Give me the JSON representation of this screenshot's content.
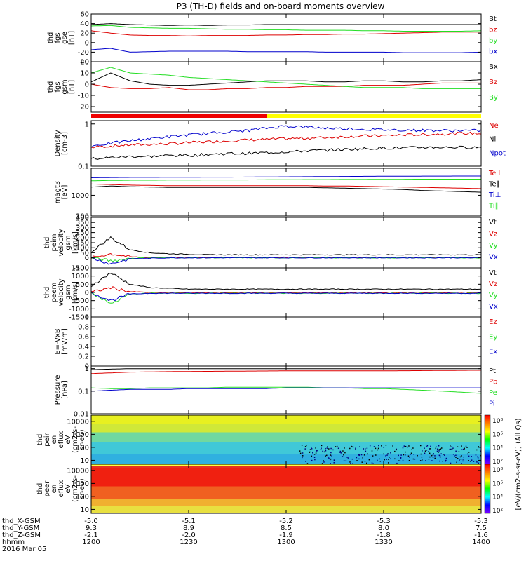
{
  "title": "P3 (TH-D) fields and on-board moments overview",
  "date_label": "2016 Mar 05",
  "orbit": {
    "labels": [
      "thd_X-GSM",
      "thd_Y-GSM",
      "thd_Z-GSM",
      "hhmm"
    ],
    "columns": [
      {
        "x": "-5.0",
        "y": "9.3",
        "z": "-2.1",
        "hhmm": "1200"
      },
      {
        "x": "-5.1",
        "y": "8.9",
        "z": "-2.0",
        "hhmm": "1230"
      },
      {
        "x": "-5.2",
        "y": "8.5",
        "z": "-1.9",
        "hhmm": "1300"
      },
      {
        "x": "-5.3",
        "y": "8.0",
        "z": "-1.8",
        "hhmm": "1330"
      },
      {
        "x": "-5.3",
        "y": "7.5",
        "z": "-1.6",
        "hhmm": "1400"
      }
    ]
  },
  "colors": {
    "black": "#000000",
    "red": "#dd0000",
    "green": "#22dd22",
    "blue": "#0000cc"
  },
  "chart_data": {
    "type": "line",
    "time_range_hhmm": [
      "1200",
      "1400"
    ],
    "mode_bar": {
      "colors": [
        "#ee0000",
        "#ffff00"
      ],
      "switch_fraction": 0.45
    },
    "panels": [
      {
        "id": "fgs_gse",
        "scale": "linear",
        "ylabel": [
          "thd",
          "fgs",
          "gse",
          "[nT]"
        ],
        "ylim": [
          -40,
          60
        ],
        "ticks": [
          -40,
          -20,
          0,
          20,
          40,
          60
        ],
        "series": [
          {
            "name": "Bt",
            "color": "#000000",
            "values": [
              38,
              40,
              38,
              37,
              36,
              37,
              36,
              37,
              37,
              38,
              38,
              38,
              38,
              38,
              38,
              38,
              38,
              38,
              38,
              38,
              38
            ]
          },
          {
            "name": "bz",
            "color": "#dd0000",
            "values": [
              25,
              20,
              16,
              15,
              15,
              14,
              15,
              15,
              15,
              16,
              16,
              17,
              17,
              18,
              18,
              19,
              20,
              21,
              22,
              22,
              22
            ]
          },
          {
            "name": "by",
            "color": "#22dd22",
            "values": [
              35,
              36,
              32,
              31,
              30,
              30,
              29,
              28,
              28,
              27,
              27,
              26,
              26,
              26,
              25,
              25,
              24,
              24,
              24,
              24,
              25
            ]
          },
          {
            "name": "bx",
            "color": "#0000cc",
            "values": [
              -15,
              -12,
              -20,
              -19,
              -18,
              -18,
              -18,
              -18,
              -19,
              -19,
              -19,
              -19,
              -20,
              -20,
              -20,
              -20,
              -21,
              -21,
              -21,
              -21,
              -20
            ]
          }
        ]
      },
      {
        "id": "fgs_gsm",
        "scale": "linear",
        "ylabel": [
          "thd",
          "fgs",
          "gsm",
          "[nT]"
        ],
        "ylim": [
          -25,
          20
        ],
        "ticks": [
          -20,
          -10,
          0,
          10,
          20
        ],
        "series": [
          {
            "name": "Bx",
            "color": "#000000",
            "values": [
              2,
              10,
              3,
              0,
              -1,
              -1,
              0,
              1,
              2,
              3,
              3,
              3,
              2,
              2,
              3,
              3,
              2,
              2,
              3,
              3,
              4
            ]
          },
          {
            "name": "Bz",
            "color": "#dd0000",
            "values": [
              0,
              -3,
              -4,
              -4,
              -3,
              -5,
              -5,
              -4,
              -4,
              -3,
              -3,
              -2,
              -2,
              -2,
              -1,
              -1,
              -1,
              0,
              1,
              1,
              1
            ]
          },
          {
            "name": "By",
            "color": "#22dd22",
            "values": [
              10,
              15,
              10,
              9,
              8,
              6,
              5,
              4,
              3,
              2,
              1,
              0,
              -1,
              -2,
              -3,
              -3,
              -3,
              -4,
              -4,
              -4,
              -4
            ]
          }
        ]
      },
      {
        "id": "density",
        "scale": "log",
        "ylabel": [
          "Density",
          "[cm-3]"
        ],
        "ylim": [
          0.1,
          1.2
        ],
        "ticks": [
          0.1,
          1.0
        ],
        "series": [
          {
            "name": "Ne",
            "color": "#dd0000",
            "values": [
              0.28,
              0.3,
              0.32,
              0.33,
              0.34,
              0.36,
              0.38,
              0.4,
              0.42,
              0.43,
              0.45,
              0.46,
              0.48,
              0.5,
              0.52,
              0.53,
              0.55,
              0.56,
              0.58,
              0.6,
              0.6
            ]
          },
          {
            "name": "Ni",
            "color": "#000000",
            "values": [
              0.15,
              0.16,
              0.17,
              0.17,
              0.18,
              0.18,
              0.19,
              0.2,
              0.2,
              0.21,
              0.22,
              0.23,
              0.24,
              0.25,
              0.26,
              0.27,
              0.27,
              0.28,
              0.28,
              0.28,
              0.28
            ]
          },
          {
            "name": "Npot",
            "color": "#0000cc",
            "values": [
              0.3,
              0.35,
              0.4,
              0.45,
              0.5,
              0.55,
              0.6,
              0.65,
              0.7,
              0.8,
              0.9,
              0.85,
              0.8,
              0.78,
              0.75,
              0.73,
              0.72,
              0.71,
              0.7,
              0.7,
              0.7
            ]
          }
        ]
      },
      {
        "id": "temperature",
        "scale": "log",
        "ylabel": [
          "magt3",
          "[eV]"
        ],
        "ylim": [
          100,
          20000
        ],
        "ticks": [
          100,
          1000
        ],
        "series": [
          {
            "name": "Te⊥",
            "color": "#dd0000",
            "values": [
              3500,
              3300,
              3100,
              3000,
              2900,
              2900,
              2900,
              2900,
              2900,
              2900,
              2900,
              2900,
              2800,
              2800,
              2700,
              2600,
              2500,
              2400,
              2300,
              2200,
              2100
            ]
          },
          {
            "name": "Te∥",
            "color": "#000000",
            "values": [
              2500,
              2800,
              2600,
              2500,
              2400,
              2400,
              2400,
              2400,
              2400,
              2400,
              2400,
              2400,
              2300,
              2200,
              2100,
              2000,
              1900,
              1700,
              1600,
              1500,
              1400
            ]
          },
          {
            "name": "Ti⊥",
            "color": "#0000cc",
            "values": [
              7000,
              7200,
              7300,
              7300,
              7400,
              7400,
              7500,
              7500,
              7600,
              7700,
              7800,
              7900,
              8000,
              8100,
              8200,
              8300,
              8300,
              8400,
              8400,
              8500,
              8500
            ]
          },
          {
            "name": "Ti∥",
            "color": "#22dd22",
            "values": [
              5000,
              5200,
              5300,
              5300,
              5400,
              5400,
              5500,
              5500,
              5500,
              5600,
              5600,
              5700,
              5700,
              5800,
              5800,
              5900,
              5900,
              6000,
              6000,
              6000,
              6000
            ]
          }
        ]
      },
      {
        "id": "peim_velocity",
        "scale": "linear",
        "ylabel": [
          "thd",
          "peim",
          "velocity",
          "gsm",
          "[km/s]"
        ],
        "ylim": [
          -100,
          400
        ],
        "ticks": [
          -100,
          0,
          50,
          100,
          150,
          200,
          250,
          300,
          350,
          400
        ],
        "series": [
          {
            "name": "Vt",
            "color": "#000000",
            "values": [
              60,
              200,
              80,
              50,
              40,
              35,
              30,
              30,
              30,
              30,
              30,
              30,
              30,
              30,
              30,
              30,
              30,
              30,
              30,
              30,
              30
            ]
          },
          {
            "name": "Vz",
            "color": "#dd0000",
            "values": [
              0,
              40,
              10,
              5,
              5,
              5,
              5,
              5,
              5,
              5,
              5,
              5,
              5,
              5,
              5,
              5,
              5,
              5,
              5,
              5,
              5
            ]
          },
          {
            "name": "Vy",
            "color": "#22dd22",
            "values": [
              0,
              -30,
              -5,
              0,
              0,
              0,
              0,
              0,
              0,
              0,
              0,
              0,
              0,
              0,
              0,
              0,
              0,
              0,
              0,
              0,
              0
            ]
          },
          {
            "name": "Vx",
            "color": "#0000cc",
            "values": [
              0,
              -60,
              -10,
              -5,
              0,
              0,
              0,
              0,
              0,
              0,
              0,
              0,
              0,
              0,
              0,
              0,
              0,
              0,
              0,
              0,
              0
            ]
          }
        ]
      },
      {
        "id": "peem_velocity",
        "scale": "linear",
        "ylabel": [
          "thd",
          "peem",
          "velocity",
          "gsm",
          "[km/s]"
        ],
        "ylim": [
          -1500,
          1500
        ],
        "ticks": [
          -1500,
          -1000,
          -500,
          0,
          500,
          1000,
          1500
        ],
        "series": [
          {
            "name": "Vt",
            "color": "#000000",
            "values": [
              400,
              1200,
              500,
              300,
              250,
              200,
              200,
              200,
              200,
              200,
              200,
              200,
              200,
              200,
              200,
              200,
              200,
              200,
              200,
              200,
              200
            ]
          },
          {
            "name": "Vz",
            "color": "#dd0000",
            "values": [
              0,
              300,
              50,
              0,
              0,
              0,
              0,
              0,
              0,
              0,
              0,
              0,
              0,
              0,
              0,
              0,
              0,
              0,
              0,
              0,
              0
            ]
          },
          {
            "name": "Vy",
            "color": "#22dd22",
            "values": [
              0,
              -700,
              -100,
              -50,
              -50,
              -50,
              -50,
              -50,
              -50,
              -50,
              -50,
              -50,
              -50,
              -50,
              -50,
              -50,
              -50,
              -50,
              -50,
              -50,
              -50
            ]
          },
          {
            "name": "Vx",
            "color": "#0000cc",
            "values": [
              0,
              -500,
              -100,
              -50,
              -50,
              -50,
              -50,
              -50,
              -50,
              -50,
              -50,
              -50,
              -50,
              -50,
              -50,
              -50,
              -50,
              -50,
              -50,
              -50,
              -50
            ]
          }
        ]
      },
      {
        "id": "efield",
        "scale": "linear",
        "ylabel": [
          "E=-VxB",
          "[mV/m]"
        ],
        "ylim": [
          0,
          1.0
        ],
        "ticks": [
          0,
          0.2,
          0.4,
          0.6,
          0.8,
          1.0
        ],
        "series": [
          {
            "name": "Ez",
            "color": "#dd0000",
            "values": []
          },
          {
            "name": "Ey",
            "color": "#22dd22",
            "values": []
          },
          {
            "name": "Ex",
            "color": "#0000cc",
            "values": []
          }
        ]
      },
      {
        "id": "pressure",
        "scale": "log",
        "ylabel": [
          "Pressure",
          "[nPa]"
        ],
        "ylim": [
          0.01,
          1.3
        ],
        "ticks": [
          0.01,
          0.1,
          1.0
        ],
        "series": [
          {
            "name": "Pt",
            "color": "#000000",
            "values": [
              0.9,
              0.95,
              1.0,
              1.0,
              1.0,
              1.0,
              1.0,
              1.0,
              1.0,
              1.0,
              1.0,
              1.0,
              1.0,
              1.0,
              1.0,
              1.0,
              1.0,
              1.0,
              1.0,
              1.0,
              1.0
            ]
          },
          {
            "name": "Pb",
            "color": "#dd0000",
            "values": [
              0.6,
              0.65,
              0.7,
              0.72,
              0.74,
              0.75,
              0.76,
              0.77,
              0.78,
              0.79,
              0.8,
              0.8,
              0.8,
              0.8,
              0.8,
              0.8,
              0.81,
              0.82,
              0.83,
              0.84,
              0.85
            ]
          },
          {
            "name": "Pe",
            "color": "#22dd22",
            "values": [
              0.14,
              0.13,
              0.13,
              0.14,
              0.14,
              0.14,
              0.14,
              0.15,
              0.15,
              0.15,
              0.15,
              0.15,
              0.14,
              0.14,
              0.13,
              0.13,
              0.12,
              0.11,
              0.1,
              0.09,
              0.08
            ]
          },
          {
            "name": "Pi",
            "color": "#0000cc",
            "values": [
              0.1,
              0.11,
              0.12,
              0.12,
              0.12,
              0.13,
              0.13,
              0.13,
              0.13,
              0.13,
              0.14,
              0.14,
              0.14,
              0.14,
              0.14,
              0.14,
              0.14,
              0.14,
              0.14,
              0.14,
              0.14
            ]
          }
        ]
      },
      {
        "id": "peir_spec",
        "type": "heatmap",
        "scale": "log",
        "ylabel": [
          "thd",
          "peir",
          "en",
          "eflux",
          "eV",
          "(cm2-s-",
          "sr-eV)"
        ],
        "ylim": [
          5,
          30000
        ],
        "ticks": [
          10,
          100,
          1000,
          10000
        ]
      },
      {
        "id": "peer_spec",
        "type": "heatmap",
        "scale": "log",
        "ylabel": [
          "thd",
          "peer",
          "en",
          "eflux",
          "eV",
          "(cm2-s-",
          "sr-eV)"
        ],
        "ylim": [
          5,
          30000
        ],
        "ticks": [
          10,
          100,
          1000,
          10000
        ]
      }
    ],
    "colorbar": {
      "label": "[eV/(cm2-s-sr-eV)] (All Qs)",
      "top_ticks": [
        "10⁸",
        "10⁶",
        "10⁴",
        "10²"
      ],
      "bottom_ticks": [
        "10⁸",
        "10⁶",
        "10⁴",
        "10²"
      ]
    }
  }
}
